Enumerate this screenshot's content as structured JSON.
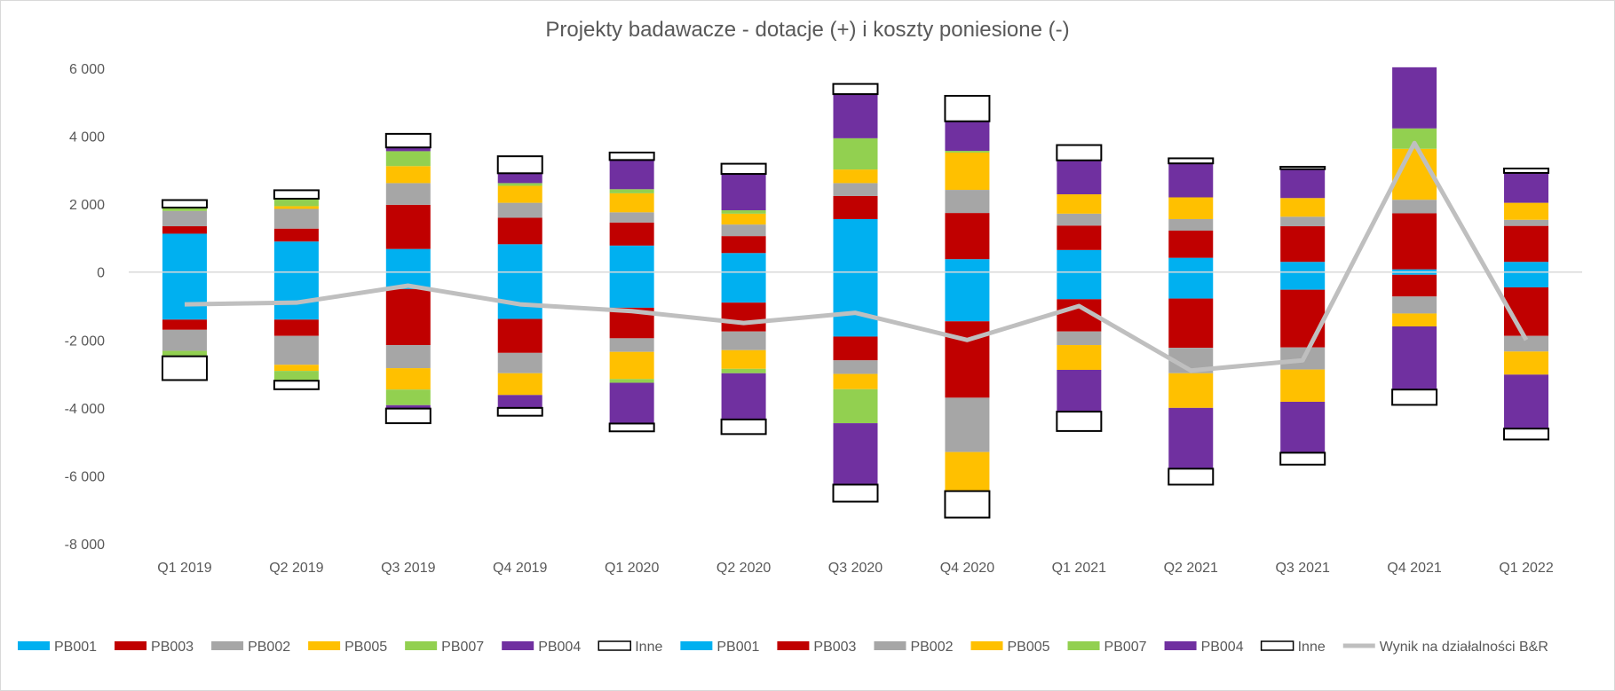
{
  "chart_data": {
    "type": "bar",
    "title": "Projekty badawacze - dotacje (+) i koszty poniesione (-)",
    "categories": [
      "Q1 2019",
      "Q2 2019",
      "Q3 2019",
      "Q4 2019",
      "Q1 2020",
      "Q2 2020",
      "Q3 2020",
      "Q4 2020",
      "Q1 2021",
      "Q2 2021",
      "Q3 2021",
      "Q4 2021",
      "Q1 2022"
    ],
    "ylim": [
      -8000,
      6000
    ],
    "yticks": [
      6000,
      4000,
      2000,
      0,
      -2000,
      -4000,
      -6000,
      -8000
    ],
    "ytick_labels": [
      "6 000",
      "4 000",
      "2 000",
      "0",
      "-2 000",
      "-4 000",
      "-6 000",
      "-8 000"
    ],
    "grid": false,
    "legend_position": "bottom",
    "positive_series": [
      {
        "name": "PB001",
        "color": "#00B0F0",
        "values": [
          1130,
          900,
          680,
          820,
          780,
          560,
          1560,
          380,
          650,
          420,
          300,
          80,
          300
        ]
      },
      {
        "name": "PB003",
        "color": "#C00000",
        "values": [
          220,
          380,
          1300,
          780,
          680,
          500,
          680,
          1360,
          720,
          800,
          1050,
          1650,
          1060
        ]
      },
      {
        "name": "PB002",
        "color": "#A6A6A6",
        "values": [
          450,
          580,
          640,
          440,
          300,
          340,
          380,
          680,
          350,
          340,
          280,
          400,
          180
        ]
      },
      {
        "name": "PB005",
        "color": "#FFC000",
        "values": [
          0,
          80,
          500,
          500,
          560,
          320,
          400,
          1100,
          570,
          640,
          550,
          1500,
          500
        ]
      },
      {
        "name": "PB007",
        "color": "#92D050",
        "values": [
          100,
          220,
          440,
          80,
          120,
          100,
          920,
          50,
          0,
          0,
          0,
          600,
          0
        ]
      },
      {
        "name": "PB004",
        "color": "#7030A0",
        "values": [
          0,
          0,
          110,
          290,
          860,
          1070,
          1300,
          870,
          1000,
          1000,
          850,
          1800,
          880
        ]
      },
      {
        "name": "Inne",
        "color": "#FFFFFF",
        "values": [
          220,
          250,
          400,
          500,
          220,
          300,
          300,
          750,
          450,
          150,
          70,
          0,
          130
        ]
      }
    ],
    "negative_series": [
      {
        "name": "PB001",
        "color": "#00B0F0",
        "values": [
          -1400,
          -1400,
          -500,
          -1380,
          -1050,
          -900,
          -1900,
          -1450,
          -800,
          -780,
          -520,
          -80,
          -450
        ]
      },
      {
        "name": "PB003",
        "color": "#C00000",
        "values": [
          -300,
          -480,
          -1650,
          -1000,
          -900,
          -850,
          -700,
          -2250,
          -950,
          -1450,
          -1700,
          -640,
          -1430
        ]
      },
      {
        "name": "PB002",
        "color": "#A6A6A6",
        "values": [
          -620,
          -850,
          -680,
          -600,
          -400,
          -550,
          -400,
          -1600,
          -400,
          -750,
          -650,
          -500,
          -460
        ]
      },
      {
        "name": "PB005",
        "color": "#FFC000",
        "values": [
          0,
          -180,
          -630,
          -640,
          -800,
          -550,
          -450,
          -1150,
          -730,
          -1020,
          -950,
          -380,
          -680
        ]
      },
      {
        "name": "PB007",
        "color": "#92D050",
        "values": [
          -160,
          -290,
          -460,
          0,
          -110,
          -130,
          -1000,
          0,
          0,
          0,
          0,
          0,
          0
        ]
      },
      {
        "name": "PB004",
        "color": "#7030A0",
        "values": [
          0,
          0,
          -100,
          -380,
          -1200,
          -1360,
          -1810,
          0,
          -1230,
          -1790,
          -1500,
          -1860,
          -1590
        ]
      },
      {
        "name": "Inne",
        "color": "#FFFFFF",
        "values": [
          -700,
          -250,
          -430,
          -230,
          -230,
          -430,
          -500,
          -780,
          -570,
          -470,
          -350,
          -450,
          -320
        ]
      }
    ],
    "line_series": {
      "name": "Wynik na działalności B&R",
      "color": "#BFBFBF",
      "values": [
        -950,
        -900,
        -400,
        -950,
        -1150,
        -1500,
        -1200,
        -2000,
        -1000,
        -2900,
        -2600,
        3800,
        -2000
      ]
    },
    "legend": [
      "PB001",
      "PB003",
      "PB002",
      "PB005",
      "PB007",
      "PB004",
      "Inne",
      "PB001",
      "PB003",
      "PB002",
      "PB005",
      "PB007",
      "PB004",
      "Inne",
      "Wynik na działalności B&R"
    ]
  }
}
